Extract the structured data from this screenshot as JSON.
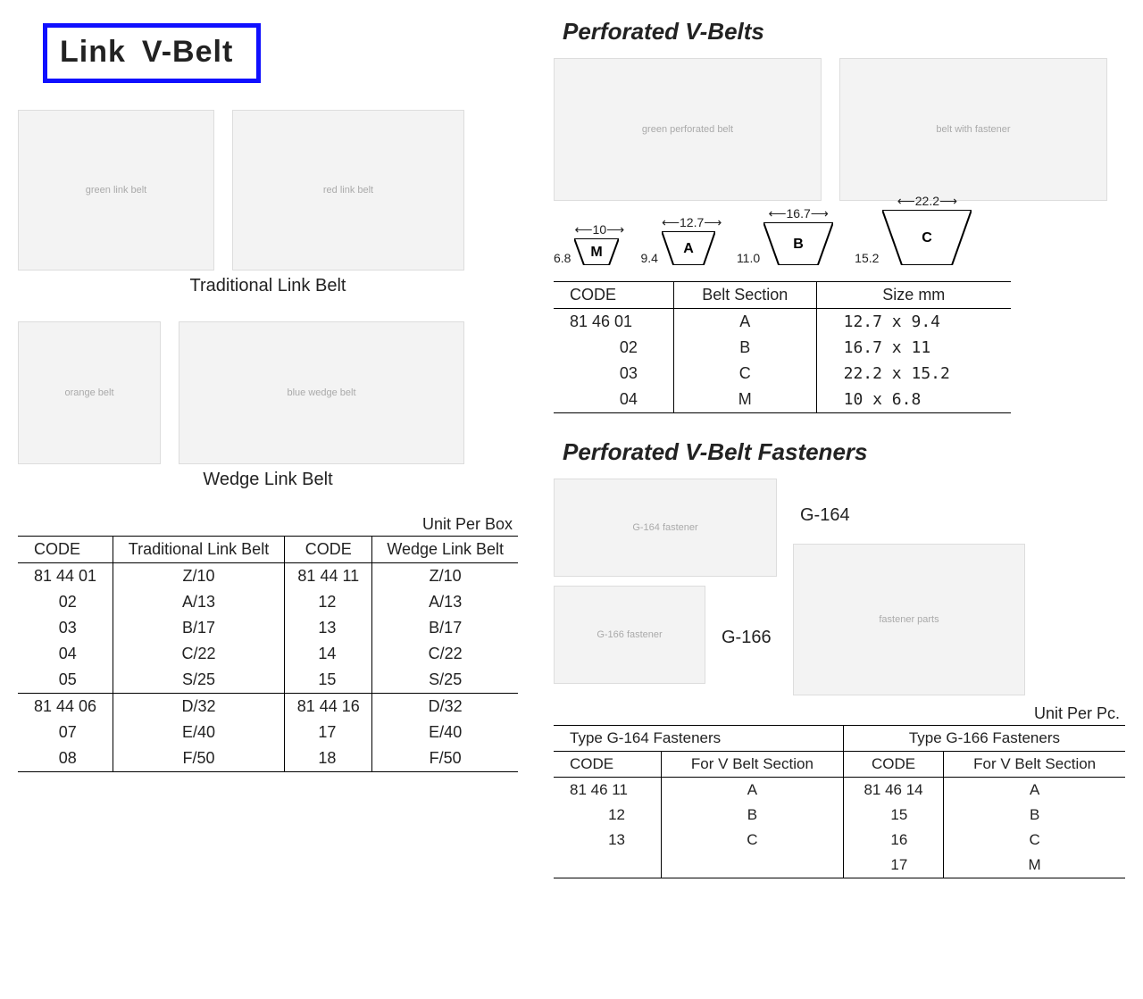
{
  "title": {
    "link": "Link",
    "vbelt": "V-Belt"
  },
  "left": {
    "caption_trad": "Traditional Link Belt",
    "caption_wedge": "Wedge Link Belt",
    "unit": "Unit Per Box",
    "table": {
      "headers": [
        "CODE",
        "Traditional Link Belt",
        "CODE",
        "Wedge Link Belt"
      ],
      "block1": [
        [
          "81 44 01",
          "Z/10",
          "81 44 11",
          "Z/10"
        ],
        [
          "02",
          "A/13",
          "12",
          "A/13"
        ],
        [
          "03",
          "B/17",
          "13",
          "B/17"
        ],
        [
          "04",
          "C/22",
          "14",
          "C/22"
        ],
        [
          "05",
          "S/25",
          "15",
          "S/25"
        ]
      ],
      "block2": [
        [
          "81 44 06",
          "D/32",
          "81 44 16",
          "D/32"
        ],
        [
          "07",
          "E/40",
          "17",
          "E/40"
        ],
        [
          "08",
          "F/50",
          "18",
          "F/50"
        ]
      ]
    }
  },
  "right": {
    "perf_title": "Perforated V-Belts",
    "profiles": [
      {
        "label": "M",
        "w": "10",
        "h": "6.8",
        "tw": 50,
        "th": 30
      },
      {
        "label": "A",
        "w": "12.7",
        "h": "9.4",
        "tw": 60,
        "th": 38
      },
      {
        "label": "B",
        "w": "16.7",
        "h": "11.0",
        "tw": 78,
        "th": 48
      },
      {
        "label": "C",
        "w": "22.2",
        "h": "15.2",
        "tw": 100,
        "th": 62
      }
    ],
    "perf_table": {
      "headers": [
        "CODE",
        "Belt Section",
        "Size mm"
      ],
      "rows": [
        [
          "81 46 01",
          "A",
          "12.7 x  9.4"
        ],
        [
          "02",
          "B",
          "16.7 x 11"
        ],
        [
          "03",
          "C",
          "22.2 x 15.2"
        ],
        [
          "04",
          "M",
          "10   x  6.8"
        ]
      ]
    },
    "fast_title": "Perforated V-Belt Fasteners",
    "fast_labels": {
      "g164": "G-164",
      "g166": "G-166"
    },
    "fast_unit": "Unit Per Pc.",
    "fast_table": {
      "group_heads": [
        "Type G-164 Fasteners",
        "Type G-166 Fasteners"
      ],
      "sub_heads": [
        "CODE",
        "For V Belt Section",
        "CODE",
        "For V Belt Section"
      ],
      "rows": [
        [
          "81 46 11",
          "A",
          "81 46 14",
          "A"
        ],
        [
          "12",
          "B",
          "15",
          "B"
        ],
        [
          "13",
          "C",
          "16",
          "C"
        ],
        [
          "",
          "",
          "17",
          "M"
        ]
      ]
    }
  }
}
